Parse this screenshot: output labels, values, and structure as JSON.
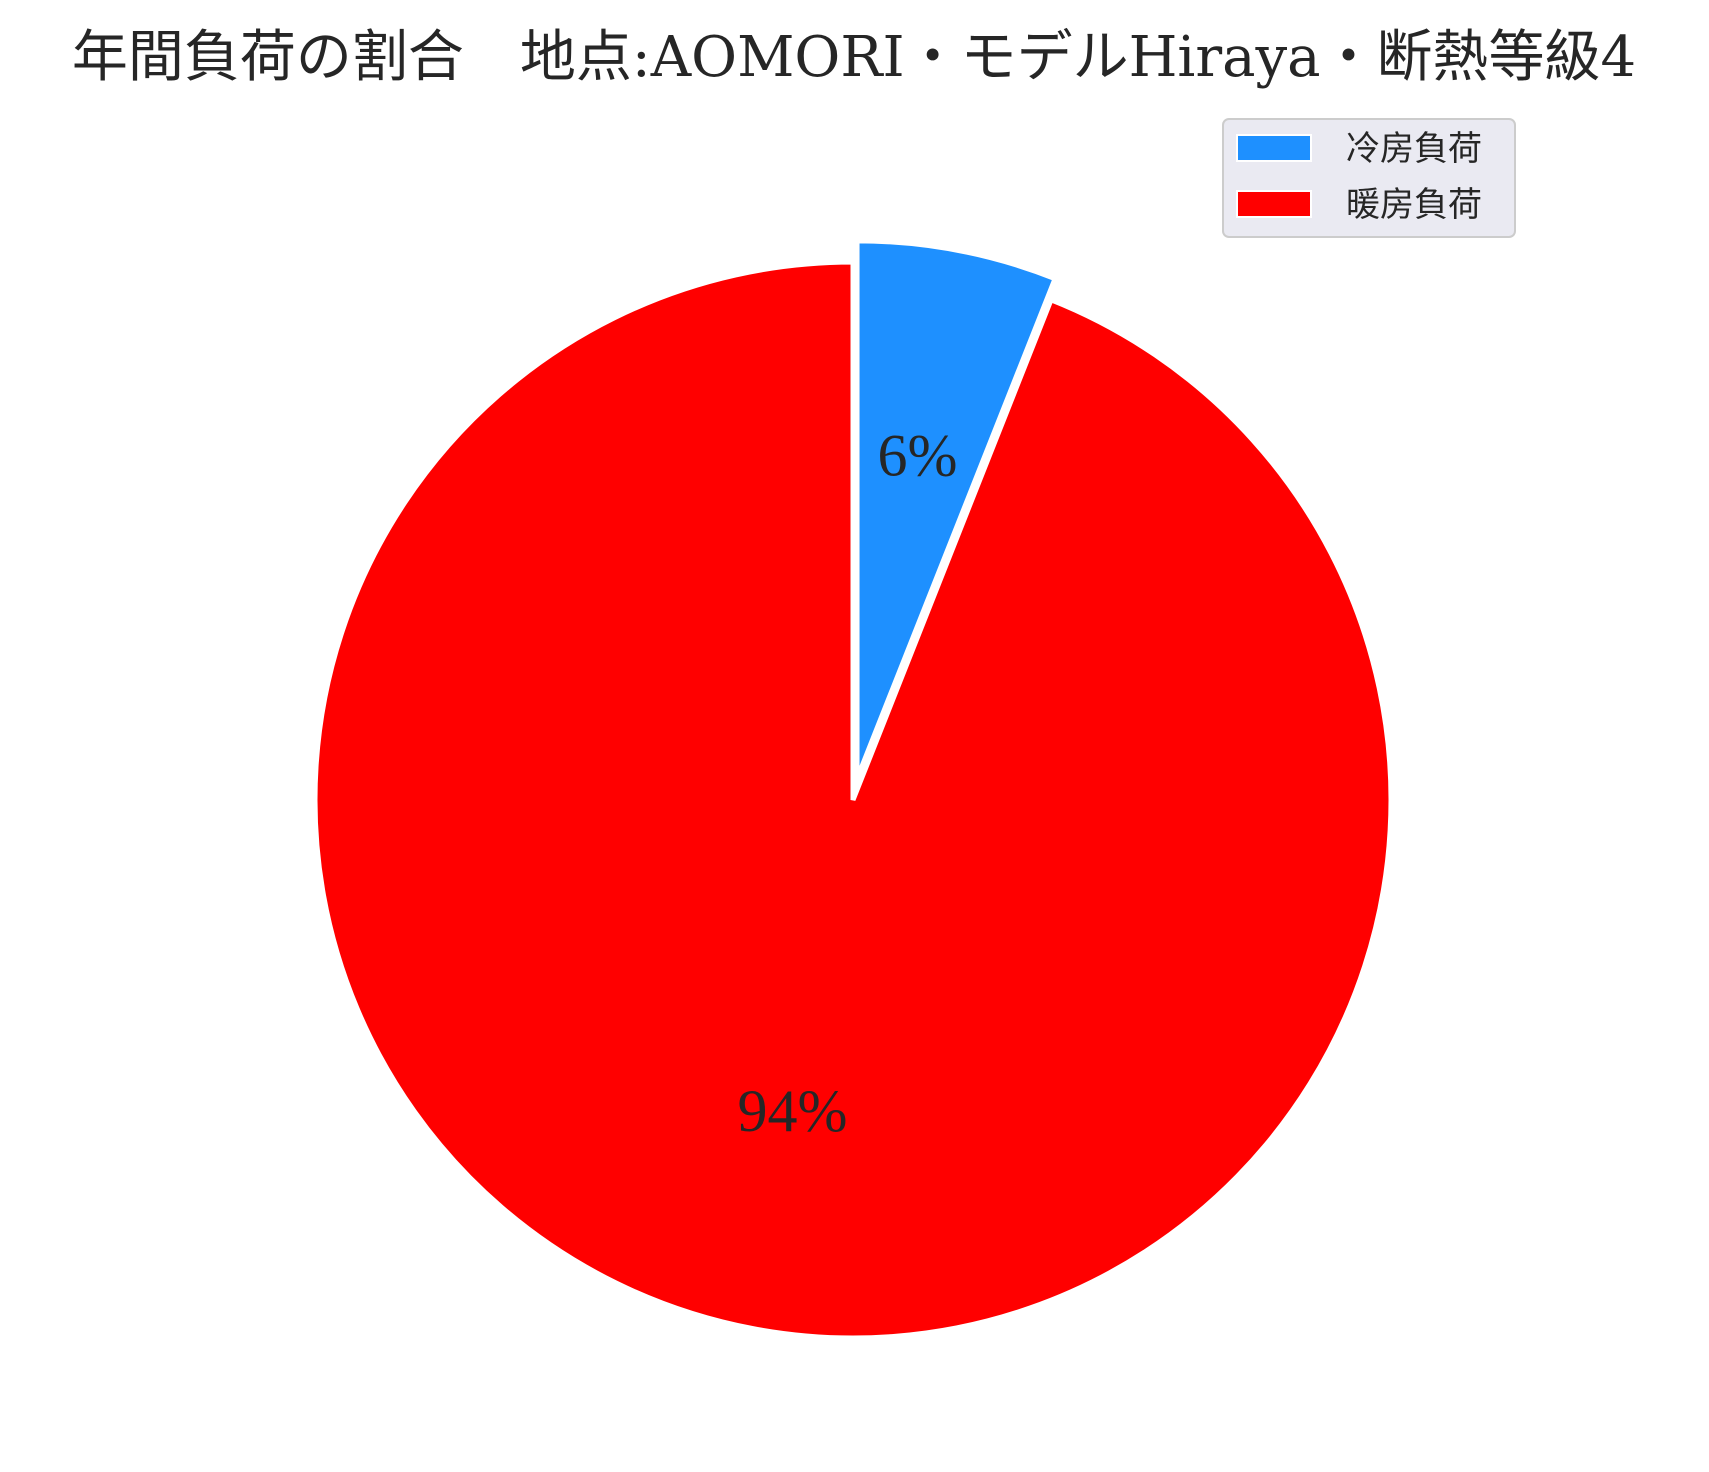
{
  "chart_data": {
    "type": "pie",
    "title": "年間負荷の割合　地点:AOMORI・モデルHiraya・断熱等級4",
    "categories": [
      "冷房負荷",
      "暖房負荷"
    ],
    "values": [
      6,
      94
    ],
    "value_labels": [
      "6%",
      "94%"
    ],
    "colors": [
      "#1E90FF",
      "#FF0000"
    ],
    "explode": [
      0.04,
      0
    ],
    "start": "top",
    "direction": "clockwise",
    "legend": {
      "placement": "top-right",
      "entries": [
        "冷房負荷",
        "暖房負荷"
      ]
    }
  }
}
